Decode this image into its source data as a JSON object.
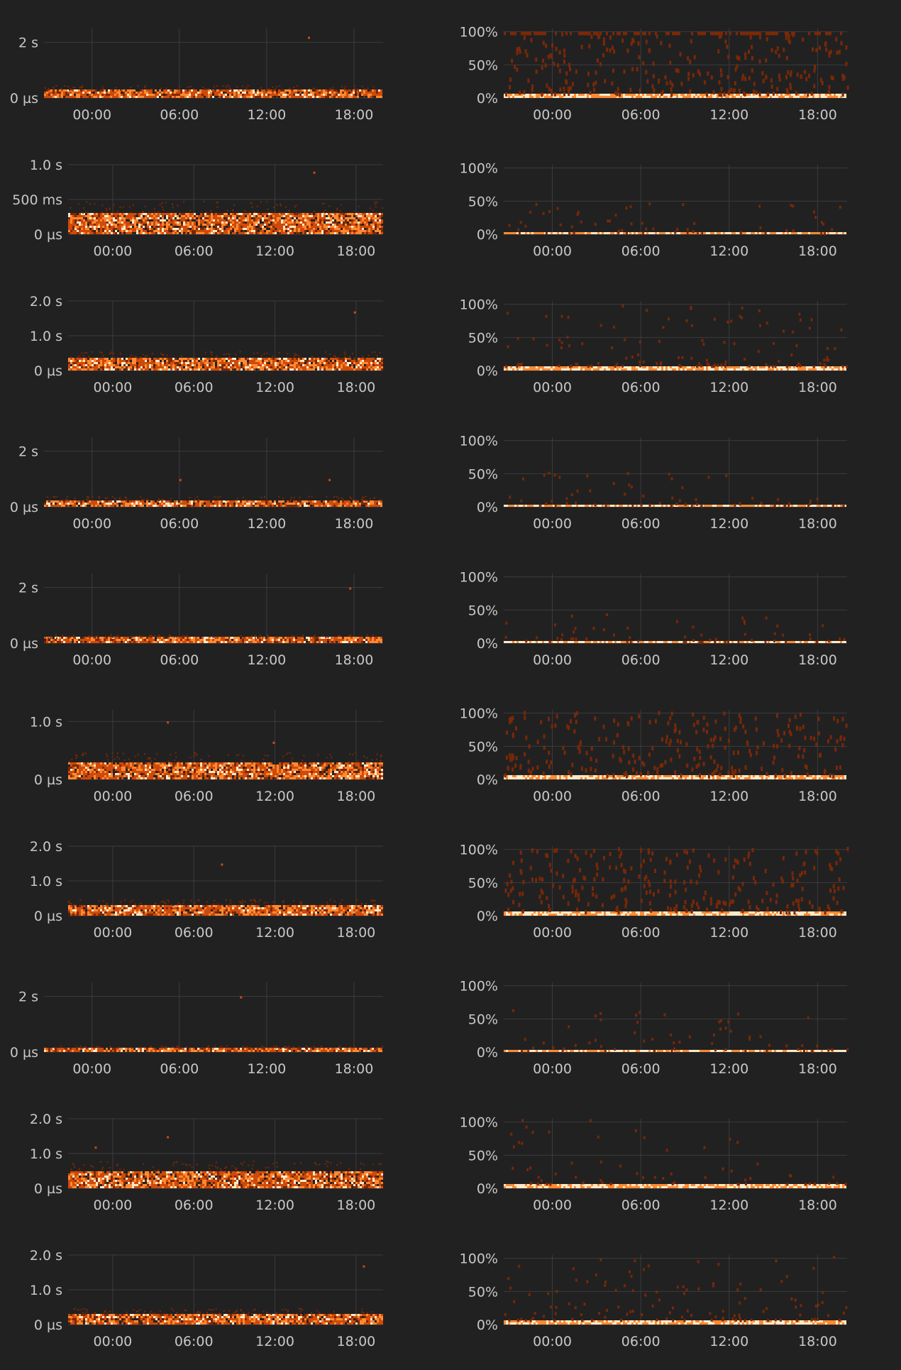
{
  "colors": {
    "background": "#212122",
    "grid": "#3c3c3e",
    "label": "#c8c8c8",
    "heat_low": "#7a2806",
    "heat_mid": "#cf4a0a",
    "heat_high": "#ff8a30",
    "heat_max": "#ffe9c8"
  },
  "chart_data": [
    {
      "type": "heatmap",
      "metric": "latency",
      "x_ticks": [
        "00:00",
        "06:00",
        "12:00",
        "18:00"
      ],
      "y_ticks": [
        "2 s",
        "0 µs"
      ],
      "ylim_seconds": [
        0,
        2.5
      ],
      "band_top_seconds": 0.3,
      "outliers": [
        {
          "time": "14:50",
          "seconds": 2.2
        }
      ]
    },
    {
      "type": "heatmap",
      "metric": "percent",
      "x_ticks": [
        "00:00",
        "06:00",
        "12:00",
        "18:00"
      ],
      "y_ticks": [
        "100%",
        "50%",
        "0%"
      ],
      "ylim_percent": [
        0,
        105
      ],
      "band_top_percent": 8,
      "scatter_max_percent": 100,
      "density": "high"
    },
    {
      "type": "heatmap",
      "metric": "latency",
      "x_ticks": [
        "00:00",
        "06:00",
        "12:00",
        "18:00"
      ],
      "y_ticks": [
        "1.0 s",
        "500 ms",
        "0 µs"
      ],
      "ylim_seconds": [
        0,
        1.0
      ],
      "band_top_seconds": 0.3,
      "outliers": [
        {
          "time": "14:50",
          "seconds": 0.9
        }
      ]
    },
    {
      "type": "heatmap",
      "metric": "percent",
      "x_ticks": [
        "00:00",
        "06:00",
        "12:00",
        "18:00"
      ],
      "y_ticks": [
        "100%",
        "50%",
        "0%"
      ],
      "ylim_percent": [
        0,
        105
      ],
      "band_top_percent": 3,
      "scatter_max_percent": 50,
      "density": "low"
    },
    {
      "type": "heatmap",
      "metric": "latency",
      "x_ticks": [
        "00:00",
        "06:00",
        "12:00",
        "18:00"
      ],
      "y_ticks": [
        "2.0 s",
        "1.0 s",
        "0 µs"
      ],
      "ylim_seconds": [
        0,
        2.0
      ],
      "band_top_seconds": 0.35,
      "outliers": [
        {
          "time": "17:50",
          "seconds": 1.7
        }
      ]
    },
    {
      "type": "heatmap",
      "metric": "percent",
      "x_ticks": [
        "00:00",
        "06:00",
        "12:00",
        "18:00"
      ],
      "y_ticks": [
        "100%",
        "50%",
        "0%"
      ],
      "ylim_percent": [
        0,
        105
      ],
      "band_top_percent": 8,
      "scatter_max_percent": 100,
      "density": "medium"
    },
    {
      "type": "heatmap",
      "metric": "latency",
      "x_ticks": [
        "00:00",
        "06:00",
        "12:00",
        "18:00"
      ],
      "y_ticks": [
        "2 s",
        "0 µs"
      ],
      "ylim_seconds": [
        0,
        2.5
      ],
      "band_top_seconds": 0.25,
      "outliers": [
        {
          "time": "16:15",
          "seconds": 1.0
        },
        {
          "time": "06:00",
          "seconds": 1.0
        }
      ]
    },
    {
      "type": "heatmap",
      "metric": "percent",
      "x_ticks": [
        "00:00",
        "06:00",
        "12:00",
        "18:00"
      ],
      "y_ticks": [
        "100%",
        "50%",
        "0%"
      ],
      "ylim_percent": [
        0,
        105
      ],
      "band_top_percent": 3,
      "scatter_max_percent": 55,
      "density": "low"
    },
    {
      "type": "heatmap",
      "metric": "latency",
      "x_ticks": [
        "00:00",
        "06:00",
        "12:00",
        "18:00"
      ],
      "y_ticks": [
        "2 s",
        "0 µs"
      ],
      "ylim_seconds": [
        0,
        2.5
      ],
      "band_top_seconds": 0.2,
      "outliers": [
        {
          "time": "17:40",
          "seconds": 2.0
        }
      ]
    },
    {
      "type": "heatmap",
      "metric": "percent",
      "x_ticks": [
        "00:00",
        "06:00",
        "12:00",
        "18:00"
      ],
      "y_ticks": [
        "100%",
        "50%",
        "0%"
      ],
      "ylim_percent": [
        0,
        105
      ],
      "band_top_percent": 3,
      "scatter_max_percent": 45,
      "density": "low"
    },
    {
      "type": "heatmap",
      "metric": "latency",
      "x_ticks": [
        "00:00",
        "06:00",
        "12:00",
        "18:00"
      ],
      "y_ticks": [
        "1.0 s",
        "0 µs"
      ],
      "ylim_seconds": [
        0,
        1.2
      ],
      "band_top_seconds": 0.3,
      "outliers": [
        {
          "time": "04:00",
          "seconds": 1.0
        },
        {
          "time": "11:50",
          "seconds": 0.65
        }
      ]
    },
    {
      "type": "heatmap",
      "metric": "percent",
      "x_ticks": [
        "00:00",
        "06:00",
        "12:00",
        "18:00"
      ],
      "y_ticks": [
        "100%",
        "50%",
        "0%"
      ],
      "ylim_percent": [
        0,
        105
      ],
      "band_top_percent": 8,
      "scatter_max_percent": 105,
      "density": "high"
    },
    {
      "type": "heatmap",
      "metric": "latency",
      "x_ticks": [
        "00:00",
        "06:00",
        "12:00",
        "18:00"
      ],
      "y_ticks": [
        "2.0 s",
        "1.0 s",
        "0 µs"
      ],
      "ylim_seconds": [
        0,
        2.0
      ],
      "band_top_seconds": 0.3,
      "outliers": [
        {
          "time": "08:00",
          "seconds": 1.5
        }
      ]
    },
    {
      "type": "heatmap",
      "metric": "percent",
      "x_ticks": [
        "00:00",
        "06:00",
        "12:00",
        "18:00"
      ],
      "y_ticks": [
        "100%",
        "50%",
        "0%"
      ],
      "ylim_percent": [
        0,
        105
      ],
      "band_top_percent": 8,
      "scatter_max_percent": 105,
      "density": "high"
    },
    {
      "type": "heatmap",
      "metric": "latency",
      "x_ticks": [
        "00:00",
        "06:00",
        "12:00",
        "18:00"
      ],
      "y_ticks": [
        "2 s",
        "0 µs"
      ],
      "ylim_seconds": [
        0,
        2.5
      ],
      "band_top_seconds": 0.15,
      "outliers": [
        {
          "time": "10:10",
          "seconds": 2.0
        }
      ]
    },
    {
      "type": "heatmap",
      "metric": "percent",
      "x_ticks": [
        "00:00",
        "06:00",
        "12:00",
        "18:00"
      ],
      "y_ticks": [
        "100%",
        "50%",
        "0%"
      ],
      "ylim_percent": [
        0,
        105
      ],
      "band_top_percent": 3,
      "scatter_max_percent": 65,
      "density": "low"
    },
    {
      "type": "heatmap",
      "metric": "latency",
      "x_ticks": [
        "00:00",
        "06:00",
        "12:00",
        "18:00"
      ],
      "y_ticks": [
        "2.0 s",
        "1.0 s",
        "0 µs"
      ],
      "ylim_seconds": [
        0,
        2.0
      ],
      "band_top_seconds": 0.5,
      "outliers": [
        {
          "time": "04:00",
          "seconds": 1.5
        },
        {
          "time": "-01:20",
          "seconds": 1.2
        }
      ]
    },
    {
      "type": "heatmap",
      "metric": "percent",
      "x_ticks": [
        "00:00",
        "06:00",
        "12:00",
        "18:00"
      ],
      "y_ticks": [
        "100%",
        "50%",
        "0%"
      ],
      "ylim_percent": [
        0,
        105
      ],
      "band_top_percent": 8,
      "scatter_max_percent": 105,
      "density": "low"
    },
    {
      "type": "heatmap",
      "metric": "latency",
      "x_ticks": [
        "00:00",
        "06:00",
        "12:00",
        "18:00"
      ],
      "y_ticks": [
        "2.0 s",
        "1.0 s",
        "0 µs"
      ],
      "ylim_seconds": [
        0,
        2.0
      ],
      "band_top_seconds": 0.3,
      "outliers": [
        {
          "time": "18:30",
          "seconds": 1.7
        }
      ]
    },
    {
      "type": "heatmap",
      "metric": "percent",
      "x_ticks": [
        "00:00",
        "06:00",
        "12:00",
        "18:00"
      ],
      "y_ticks": [
        "100%",
        "50%",
        "0%"
      ],
      "ylim_percent": [
        0,
        105
      ],
      "band_top_percent": 8,
      "scatter_max_percent": 105,
      "density": "medium"
    }
  ]
}
